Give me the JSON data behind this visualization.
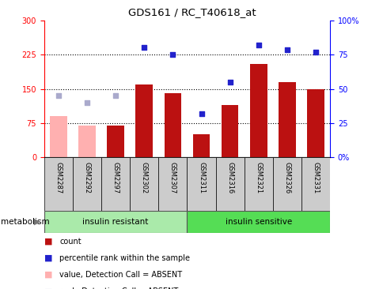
{
  "title": "GDS161 / RC_T40618_at",
  "samples": [
    "GSM2287",
    "GSM2292",
    "GSM2297",
    "GSM2302",
    "GSM2307",
    "GSM2311",
    "GSM2316",
    "GSM2321",
    "GSM2326",
    "GSM2331"
  ],
  "bar_values": [
    90,
    70,
    70,
    160,
    140,
    50,
    115,
    205,
    165,
    150
  ],
  "bar_absent": [
    true,
    true,
    false,
    false,
    false,
    false,
    false,
    false,
    false,
    false
  ],
  "dot_values": [
    null,
    null,
    null,
    240,
    225,
    95,
    165,
    245,
    235,
    230
  ],
  "dot_absent_values": [
    135,
    120,
    135,
    null,
    null,
    null,
    null,
    null,
    null,
    null
  ],
  "bar_color_normal": "#bb1111",
  "bar_color_absent": "#ffb0b0",
  "dot_color_normal": "#2222cc",
  "dot_color_absent": "#aaaacc",
  "left_ylim": [
    0,
    300
  ],
  "right_ylim": [
    0,
    100
  ],
  "left_yticks": [
    0,
    75,
    150,
    225,
    300
  ],
  "right_yticks": [
    0,
    25,
    50,
    75,
    100
  ],
  "right_yticklabels": [
    "0%",
    "25",
    "50",
    "75",
    "100%"
  ],
  "hlines": [
    75,
    150,
    225
  ],
  "group1_label": "insulin resistant",
  "group2_label": "insulin sensitive",
  "group1_count": 5,
  "group2_count": 5,
  "metabolism_label": "metabolism",
  "legend_items": [
    {
      "color": "#bb1111",
      "label": "count"
    },
    {
      "color": "#2222cc",
      "label": "percentile rank within the sample"
    },
    {
      "color": "#ffb0b0",
      "label": "value, Detection Call = ABSENT"
    },
    {
      "color": "#aaaacc",
      "label": "rank, Detection Call = ABSENT"
    }
  ]
}
